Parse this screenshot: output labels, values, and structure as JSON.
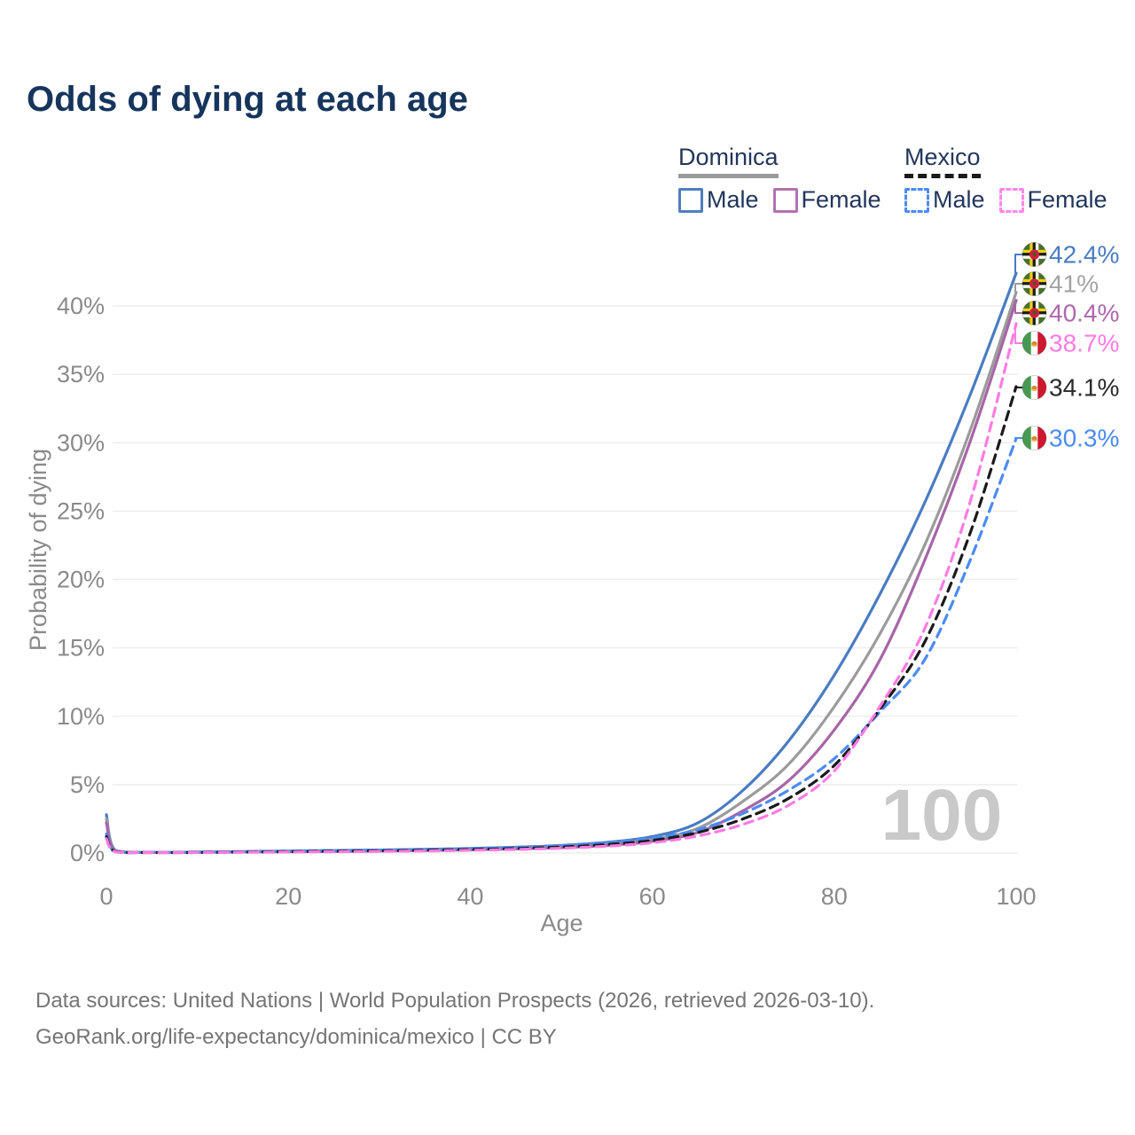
{
  "page": {
    "title": "Odds of dying at each age"
  },
  "legend": {
    "groups": [
      {
        "label": "Dominica",
        "line_style": "solid",
        "underline_color": "#9b9b9b",
        "items": [
          {
            "label": "Male",
            "color": "#4f7ec1"
          },
          {
            "label": "Female",
            "color": "#b173b1"
          }
        ]
      },
      {
        "label": "Mexico",
        "line_style": "dashed",
        "underline_color": "#1a1a1a",
        "items": [
          {
            "label": "Male",
            "color": "#4b8bf5"
          },
          {
            "label": "Female",
            "color": "#ff87ea"
          }
        ]
      }
    ]
  },
  "chart_data": {
    "type": "line",
    "xlabel": "Age",
    "ylabel": "Probability of dying",
    "x_ticks": [
      0,
      20,
      40,
      60,
      80,
      100
    ],
    "y_ticks": [
      "0%",
      "5%",
      "10%",
      "15%",
      "20%",
      "25%",
      "30%",
      "35%",
      "40%"
    ],
    "xlim": [
      0,
      100
    ],
    "ylim_pct": [
      0,
      44
    ],
    "grid": true,
    "watermark": "100",
    "ages": [
      0,
      1,
      5,
      10,
      15,
      20,
      25,
      30,
      35,
      40,
      45,
      50,
      55,
      60,
      65,
      70,
      75,
      80,
      85,
      90,
      95,
      100
    ],
    "series": [
      {
        "id": "dominica-male",
        "name": "Dominica Male",
        "color": "#4a7cc2",
        "dash": false,
        "values": [
          2.8,
          0.18,
          0.06,
          0.07,
          0.11,
          0.15,
          0.18,
          0.22,
          0.27,
          0.33,
          0.42,
          0.55,
          0.78,
          1.2,
          2.2,
          4.6,
          8.2,
          13.0,
          18.9,
          25.7,
          33.6,
          42.4
        ]
      },
      {
        "id": "dominica",
        "name": "Dominica (both sexes)",
        "color": "#9b9b9b",
        "dash": false,
        "values": [
          2.5,
          0.16,
          0.05,
          0.06,
          0.09,
          0.12,
          0.15,
          0.18,
          0.22,
          0.28,
          0.35,
          0.46,
          0.65,
          1.0,
          1.8,
          3.8,
          6.5,
          10.7,
          16.0,
          22.6,
          31.0,
          41.0
        ]
      },
      {
        "id": "dominica-female",
        "name": "Dominica Female",
        "color": "#a765a7",
        "dash": false,
        "values": [
          2.2,
          0.14,
          0.04,
          0.05,
          0.07,
          0.09,
          0.11,
          0.14,
          0.18,
          0.23,
          0.3,
          0.39,
          0.55,
          0.85,
          1.5,
          3.1,
          5.3,
          9.0,
          14.1,
          21.5,
          30.2,
          40.4
        ]
      },
      {
        "id": "mexico-male",
        "name": "Mexico Male",
        "color": "#4b8bf5",
        "dash": true,
        "values": [
          1.4,
          0.1,
          0.04,
          0.05,
          0.09,
          0.14,
          0.18,
          0.22,
          0.27,
          0.33,
          0.42,
          0.56,
          0.78,
          1.1,
          1.7,
          2.9,
          4.6,
          6.9,
          10.3,
          14.2,
          21.5,
          30.3
        ]
      },
      {
        "id": "mexico",
        "name": "Mexico (both sexes)",
        "color": "#1a1a1a",
        "dash": true,
        "values": [
          1.2,
          0.09,
          0.03,
          0.04,
          0.07,
          0.1,
          0.13,
          0.16,
          0.2,
          0.26,
          0.33,
          0.44,
          0.62,
          0.92,
          1.5,
          2.5,
          4.0,
          6.4,
          10.5,
          15.5,
          23.5,
          34.1
        ]
      },
      {
        "id": "mexico-female",
        "name": "Mexico Female",
        "color": "#ff7be4",
        "dash": true,
        "values": [
          1.05,
          0.08,
          0.03,
          0.03,
          0.05,
          0.07,
          0.09,
          0.12,
          0.15,
          0.2,
          0.26,
          0.35,
          0.5,
          0.75,
          1.25,
          2.1,
          3.5,
          6.0,
          10.7,
          16.5,
          25.8,
          38.7
        ]
      }
    ],
    "end_labels": [
      {
        "series": "dominica-male",
        "text": "42.4%",
        "flag": "dominica",
        "color": "#4a7cc2"
      },
      {
        "series": "dominica",
        "text": "41%",
        "flag": "dominica",
        "color": "#a3a3a3"
      },
      {
        "series": "dominica-female",
        "text": "40.4%",
        "flag": "dominica",
        "color": "#ad68ad"
      },
      {
        "series": "mexico-female",
        "text": "38.7%",
        "flag": "mexico",
        "color": "#ff7be4"
      },
      {
        "series": "mexico",
        "text": "34.1%",
        "flag": "mexico",
        "color": "#2b2b2b"
      },
      {
        "series": "mexico-male",
        "text": "30.3%",
        "flag": "mexico",
        "color": "#4b8bf5"
      }
    ]
  },
  "footer": {
    "line1": "Data sources: United Nations | World Population Prospects (2026, retrieved 2026-03-10).",
    "line2": "GeoRank.org/life-expectancy/dominica/mexico | CC BY"
  }
}
